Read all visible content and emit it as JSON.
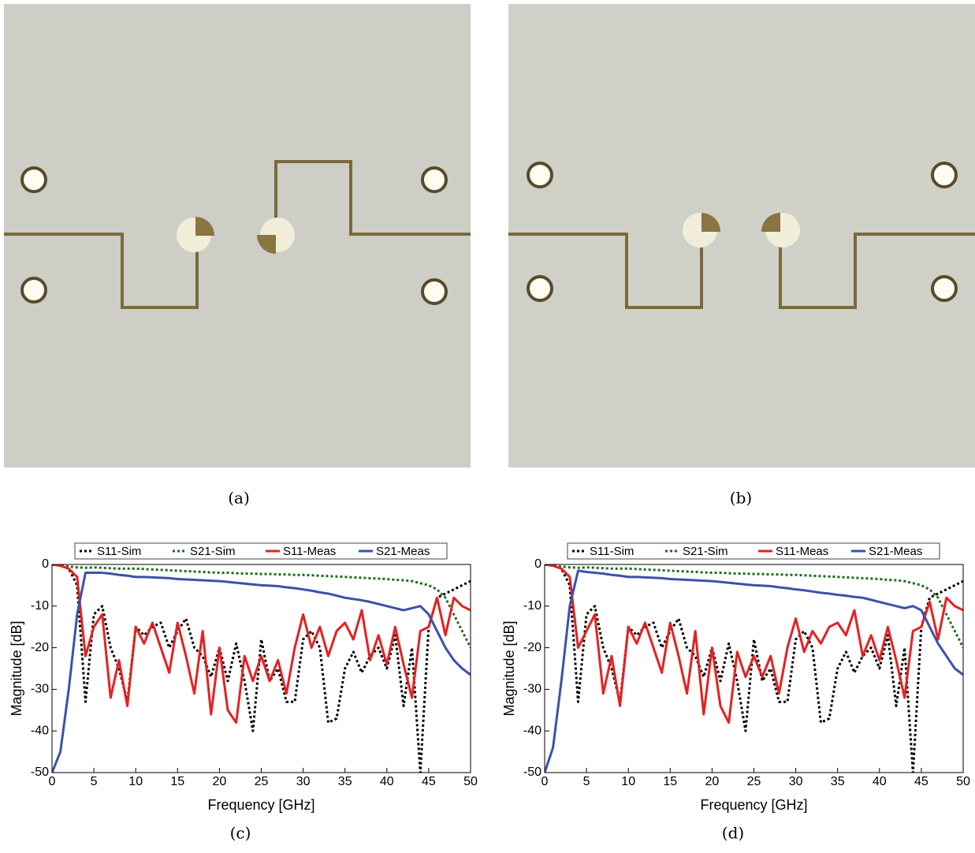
{
  "captions": [
    "(a)",
    "(b)",
    "(c)",
    "(d)"
  ],
  "chart_data": [
    {
      "type": "line",
      "xlabel": "Frequency [GHz]",
      "ylabel": "Magnitude [dB]",
      "xlim": [
        0,
        50
      ],
      "ylim": [
        -50,
        0
      ],
      "xticks": [
        0,
        5,
        10,
        15,
        20,
        25,
        30,
        35,
        40,
        45,
        50
      ],
      "yticks": [
        -50,
        -40,
        -30,
        -20,
        -10,
        0
      ],
      "legend": "top",
      "grid": false,
      "x": [
        0,
        1,
        2,
        3,
        4,
        5,
        6,
        7,
        8,
        9,
        10,
        11,
        12,
        13,
        14,
        15,
        16,
        17,
        18,
        19,
        20,
        21,
        22,
        23,
        24,
        25,
        26,
        27,
        28,
        29,
        30,
        31,
        32,
        33,
        34,
        35,
        36,
        37,
        38,
        39,
        40,
        41,
        42,
        43,
        44,
        45,
        46,
        47,
        48,
        49,
        50
      ],
      "series": [
        {
          "name": "S11-Sim",
          "color": "#000000",
          "line_style": "dotted",
          "values": [
            0,
            -0.3,
            -1,
            -5,
            -33,
            -12,
            -10,
            -20,
            -25,
            -33,
            -15,
            -17,
            -15,
            -14,
            -20,
            -16,
            -13,
            -20,
            -22,
            -27,
            -20,
            -28,
            -19,
            -28,
            -40,
            -18,
            -28,
            -25,
            -33,
            -33,
            -18,
            -16,
            -20,
            -38,
            -37,
            -25,
            -21,
            -26,
            -22,
            -20,
            -25,
            -17,
            -34,
            -20,
            -50,
            -15,
            -8,
            -7,
            -6,
            -5,
            -4
          ]
        },
        {
          "name": "S21-Sim",
          "color": "#1a6e1a",
          "line_style": "dotted",
          "values": [
            0,
            -0.3,
            -0.5,
            -0.7,
            -0.8,
            -0.7,
            -0.8,
            -0.9,
            -1,
            -1,
            -1,
            -1.1,
            -1.2,
            -1.3,
            -1.4,
            -1.5,
            -1.6,
            -1.7,
            -1.8,
            -1.9,
            -2,
            -2,
            -2.1,
            -2.2,
            -2.2,
            -2.3,
            -2.3,
            -2.4,
            -2.4,
            -2.5,
            -2.5,
            -2.6,
            -2.7,
            -2.8,
            -2.9,
            -3,
            -3.1,
            -3.2,
            -3.3,
            -3.4,
            -3.5,
            -3.7,
            -3.8,
            -4,
            -4.5,
            -5,
            -6,
            -8,
            -12,
            -16,
            -20
          ]
        },
        {
          "name": "S11-Meas",
          "color": "#e32222",
          "line_style": "solid",
          "values": [
            0,
            -0.3,
            -1,
            -3,
            -22,
            -15,
            -12,
            -32,
            -23,
            -34,
            -15,
            -19,
            -14,
            -20,
            -26,
            -14,
            -22,
            -31,
            -16,
            -36,
            -20,
            -35,
            -38,
            -22,
            -28,
            -22,
            -28,
            -23,
            -31,
            -20,
            -12,
            -20,
            -15,
            -22,
            -16,
            -14,
            -18,
            -11,
            -23,
            -17,
            -24,
            -15,
            -24,
            -32,
            -16,
            -15,
            -8,
            -17,
            -8,
            -10,
            -11
          ]
        },
        {
          "name": "S21-Meas",
          "color": "#3a52a8",
          "line_style": "solid",
          "values": [
            -50,
            -45,
            -30,
            -12,
            -2,
            -2,
            -2,
            -2.2,
            -2.5,
            -2.7,
            -3,
            -3,
            -3.1,
            -3.2,
            -3.3,
            -3.5,
            -3.6,
            -3.7,
            -3.8,
            -3.9,
            -4,
            -4.2,
            -4.4,
            -4.6,
            -4.8,
            -5,
            -5.1,
            -5.2,
            -5.5,
            -5.7,
            -6,
            -6.3,
            -6.7,
            -7,
            -7.5,
            -8,
            -8.3,
            -8.6,
            -9,
            -9.5,
            -10,
            -10.5,
            -11,
            -10.5,
            -10,
            -12,
            -16,
            -20,
            -23,
            -25,
            -26.5
          ]
        }
      ]
    },
    {
      "type": "line",
      "xlabel": "Frequency [GHz]",
      "ylabel": "Magnitude [dB]",
      "xlim": [
        0,
        50
      ],
      "ylim": [
        -50,
        0
      ],
      "xticks": [
        0,
        5,
        10,
        15,
        20,
        25,
        30,
        35,
        40,
        45,
        50
      ],
      "yticks": [
        -50,
        -40,
        -30,
        -20,
        -10,
        0
      ],
      "legend": "top",
      "grid": false,
      "x": [
        0,
        1,
        2,
        3,
        4,
        5,
        6,
        7,
        8,
        9,
        10,
        11,
        12,
        13,
        14,
        15,
        16,
        17,
        18,
        19,
        20,
        21,
        22,
        23,
        24,
        25,
        26,
        27,
        28,
        29,
        30,
        31,
        32,
        33,
        34,
        35,
        36,
        37,
        38,
        39,
        40,
        41,
        42,
        43,
        44,
        45,
        46,
        47,
        48,
        49,
        50
      ],
      "series": [
        {
          "name": "S11-Sim",
          "color": "#000000",
          "line_style": "dotted",
          "values": [
            0,
            -0.3,
            -1,
            -5,
            -33,
            -12,
            -10,
            -20,
            -25,
            -33,
            -15,
            -17,
            -15,
            -14,
            -20,
            -16,
            -13,
            -20,
            -22,
            -27,
            -20,
            -28,
            -19,
            -28,
            -40,
            -18,
            -28,
            -25,
            -33,
            -33,
            -18,
            -16,
            -20,
            -38,
            -37,
            -25,
            -21,
            -26,
            -22,
            -20,
            -25,
            -17,
            -34,
            -20,
            -50,
            -15,
            -8,
            -7,
            -6,
            -5,
            -4
          ]
        },
        {
          "name": "S21-Sim",
          "color": "#1a6e1a",
          "line_style": "dotted",
          "values": [
            0,
            -0.3,
            -0.5,
            -0.7,
            -0.8,
            -0.7,
            -0.8,
            -0.9,
            -1,
            -1,
            -1,
            -1.1,
            -1.2,
            -1.3,
            -1.4,
            -1.5,
            -1.6,
            -1.7,
            -1.8,
            -1.9,
            -2,
            -2,
            -2.1,
            -2.2,
            -2.2,
            -2.3,
            -2.3,
            -2.4,
            -2.4,
            -2.5,
            -2.5,
            -2.6,
            -2.7,
            -2.8,
            -2.9,
            -3,
            -3.1,
            -3.2,
            -3.3,
            -3.4,
            -3.5,
            -3.7,
            -3.8,
            -4,
            -4.5,
            -5,
            -6,
            -8,
            -12,
            -16,
            -20
          ]
        },
        {
          "name": "S11-Meas",
          "color": "#e32222",
          "line_style": "solid",
          "values": [
            0,
            -0.3,
            -1,
            -3,
            -20,
            -16,
            -12,
            -31,
            -22,
            -34,
            -15,
            -19,
            -14,
            -20,
            -26,
            -14,
            -22,
            -31,
            -16,
            -36,
            -20,
            -34,
            -38,
            -21,
            -27,
            -22,
            -27,
            -22,
            -31,
            -20,
            -13,
            -21,
            -16,
            -19,
            -15,
            -14,
            -17,
            -11,
            -22,
            -17,
            -23,
            -15,
            -23,
            -32,
            -16,
            -15,
            -9,
            -18,
            -8,
            -10,
            -11
          ]
        },
        {
          "name": "S21-Meas",
          "color": "#3a52a8",
          "line_style": "solid",
          "values": [
            -50,
            -44,
            -28,
            -10,
            -1.5,
            -1.8,
            -2,
            -2.2,
            -2.5,
            -2.7,
            -3,
            -3,
            -3.1,
            -3.2,
            -3.3,
            -3.5,
            -3.6,
            -3.7,
            -3.8,
            -3.9,
            -4,
            -4.2,
            -4.4,
            -4.6,
            -4.8,
            -5,
            -5.1,
            -5.2,
            -5.5,
            -5.7,
            -6,
            -6.2,
            -6.5,
            -6.8,
            -7,
            -7.3,
            -7.5,
            -7.8,
            -8,
            -8.5,
            -9,
            -9.5,
            -10,
            -10.5,
            -10,
            -11,
            -15,
            -19,
            -22,
            -25,
            -26.5
          ]
        }
      ]
    }
  ]
}
